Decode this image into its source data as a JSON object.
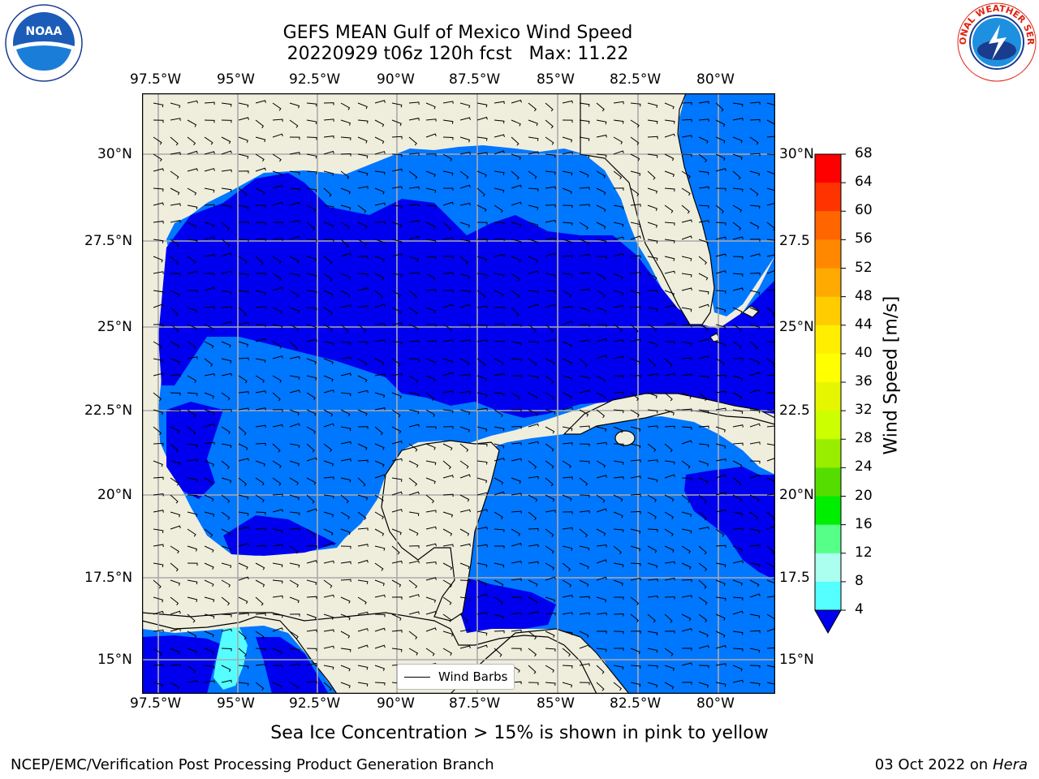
{
  "title": {
    "line1": "GEFS MEAN Gulf of Mexico Wind Speed",
    "line2": "20220929 t06z 120h fcst   Max: 11.22"
  },
  "logos": {
    "left": "NOAA",
    "right": "NATIONAL WEATHER SERVICE"
  },
  "lon_ticks": [
    "97.5°W",
    "95°W",
    "92.5°W",
    "90°W",
    "87.5°W",
    "85°W",
    "82.5°W",
    "80°W"
  ],
  "lat_ticks": [
    "30°N",
    "27.5°N",
    "25°N",
    "22.5°N",
    "20°N",
    "17.5°N",
    "15°N"
  ],
  "lat_ticks_right": [
    "30°N",
    "27.5",
    "25°N",
    "22.5",
    "20°N",
    "17.5",
    "15°N"
  ],
  "colorbar": {
    "label": "Wind Speed [m/s]",
    "ticks": [
      "68",
      "64",
      "60",
      "56",
      "52",
      "48",
      "44",
      "40",
      "36",
      "32",
      "28",
      "24",
      "20",
      "16",
      "12",
      "8",
      "4"
    ],
    "colors": [
      "#ff0000",
      "#ff3300",
      "#ff6600",
      "#ff8800",
      "#ffaa00",
      "#ffcc00",
      "#ffee00",
      "#ffff00",
      "#e6f500",
      "#ccff00",
      "#99ee00",
      "#55dd00",
      "#00ee00",
      "#55ff88",
      "#aaffee",
      "#55ffff",
      "#00ffff",
      "#0077ff",
      "#0000ee"
    ]
  },
  "legend": {
    "label": "Wind Barbs"
  },
  "footer": {
    "center": "Sea Ice Concentration > 15% is shown in pink to yellow",
    "left": "NCEP/EMC/Verification Post Processing Product Generation Branch",
    "right_prefix": "03 Oct 2022 on ",
    "right_host": "Hera"
  },
  "colors": {
    "land": "#efeedd",
    "ocean_low": "#0000ee",
    "ocean_mid": "#0077ff",
    "ocean_high": "#00ffff"
  }
}
